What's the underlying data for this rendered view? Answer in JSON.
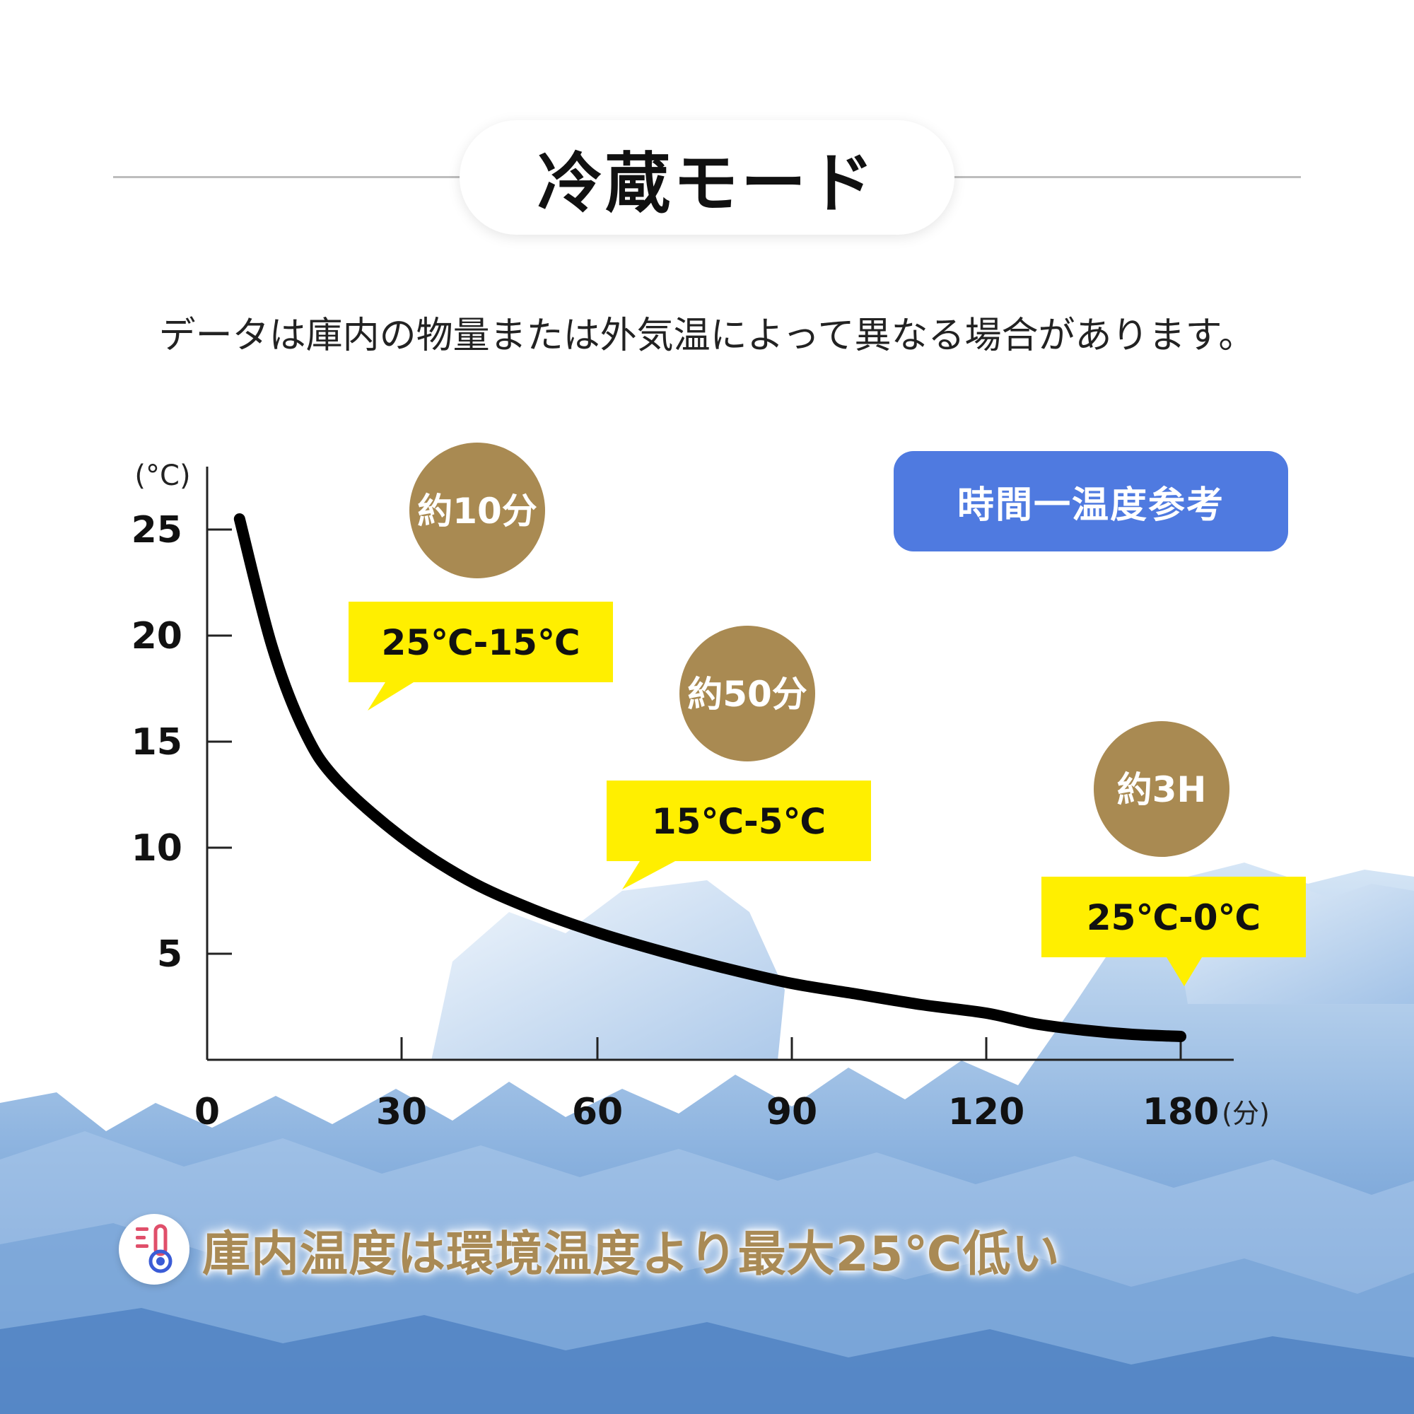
{
  "header": {
    "title": "冷蔵モード"
  },
  "note": "データは庫内の物量または外気温によって異なる場合があります。",
  "legend_label": "時間一温度参考",
  "footer": {
    "text": "庫内温度は環境温度より最大25℃低い",
    "icon": "thermometer-icon"
  },
  "colors": {
    "curve": "#000000",
    "badge": "#a98a52",
    "callout": "#ffef00",
    "legend": "#4f7ae0",
    "footer_text": "#a98a55",
    "ice": "#6f9fd6"
  },
  "chart_data": {
    "type": "line",
    "ylabel": "(°C)",
    "xlabel": "(分)",
    "x_ticks": [
      "0",
      "30",
      "60",
      "90",
      "120",
      "180"
    ],
    "y_ticks": [
      "25",
      "20",
      "15",
      "10",
      "5"
    ],
    "ylim": [
      0,
      25
    ],
    "series": [
      {
        "points": [
          [
            5,
            25.5
          ],
          [
            10,
            19.5
          ],
          [
            15,
            15.5
          ],
          [
            20,
            13.2
          ],
          [
            30,
            10.5
          ],
          [
            40,
            8.5
          ],
          [
            50,
            7.1
          ],
          [
            60,
            6.0
          ],
          [
            70,
            5.1
          ],
          [
            80,
            4.3
          ],
          [
            90,
            3.6
          ],
          [
            100,
            3.1
          ],
          [
            110,
            2.6
          ],
          [
            120,
            2.2
          ],
          [
            135,
            1.7
          ],
          [
            150,
            1.4
          ],
          [
            165,
            1.2
          ],
          [
            180,
            1.1
          ]
        ]
      }
    ],
    "annotations": [
      {
        "badge": "約10分",
        "callout": "25℃-15℃"
      },
      {
        "badge": "約50分",
        "callout": "15℃-5℃"
      },
      {
        "badge": "約3H",
        "callout": "25℃-0℃"
      }
    ]
  }
}
